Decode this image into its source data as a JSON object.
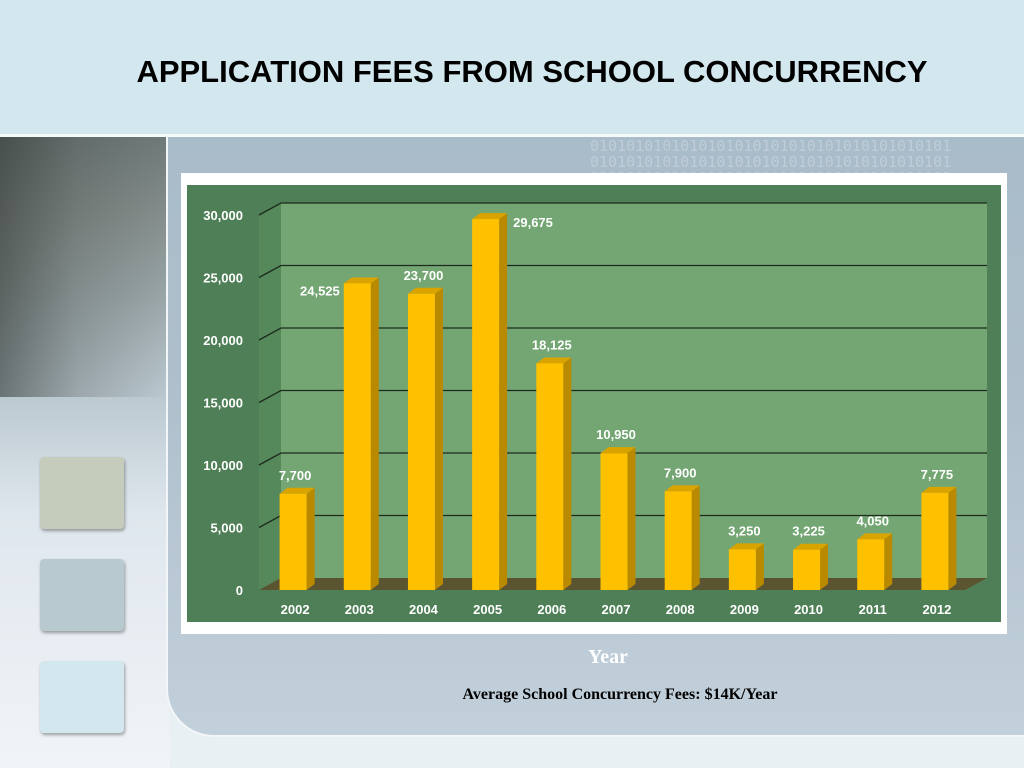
{
  "slide": {
    "title": "APPLICATION FEES FROM SCHOOL CONCURRENCY",
    "footnote": "Average School Concurrency Fees:  $14K/Year",
    "binary_pattern": "0101010101010101010101010101010101010101"
  },
  "colors": {
    "header_bg": "#d3e8ee",
    "plot_bg": "#73a673",
    "chart_bg": "#4f7f57",
    "bar_front": "#ffc000",
    "bar_side": "#b98a00",
    "bar_top": "#d9a400",
    "floor": "#5a5430"
  },
  "chart_data": {
    "type": "bar",
    "title": "",
    "xlabel": "Year",
    "ylabel": "",
    "categories": [
      "2002",
      "2003",
      "2004",
      "2005",
      "2006",
      "2007",
      "2008",
      "2009",
      "2010",
      "2011",
      "2012"
    ],
    "values": [
      7700,
      24525,
      23700,
      29675,
      18125,
      10950,
      7900,
      3250,
      3225,
      4050,
      7775
    ],
    "data_labels": [
      "7,700",
      "24,525",
      "23,700",
      "29,675",
      "18,125",
      "10,950",
      "7,900",
      "3,250",
      "3,225",
      "4,050",
      "7,775"
    ],
    "yticks": [
      0,
      5000,
      10000,
      15000,
      20000,
      25000,
      30000
    ],
    "ytick_labels": [
      "0",
      "5,000",
      "10,000",
      "15,000",
      "20,000",
      "25,000",
      "30,000"
    ],
    "ylim": [
      0,
      30000
    ],
    "grid": true,
    "legend": "none",
    "style": "3d"
  }
}
